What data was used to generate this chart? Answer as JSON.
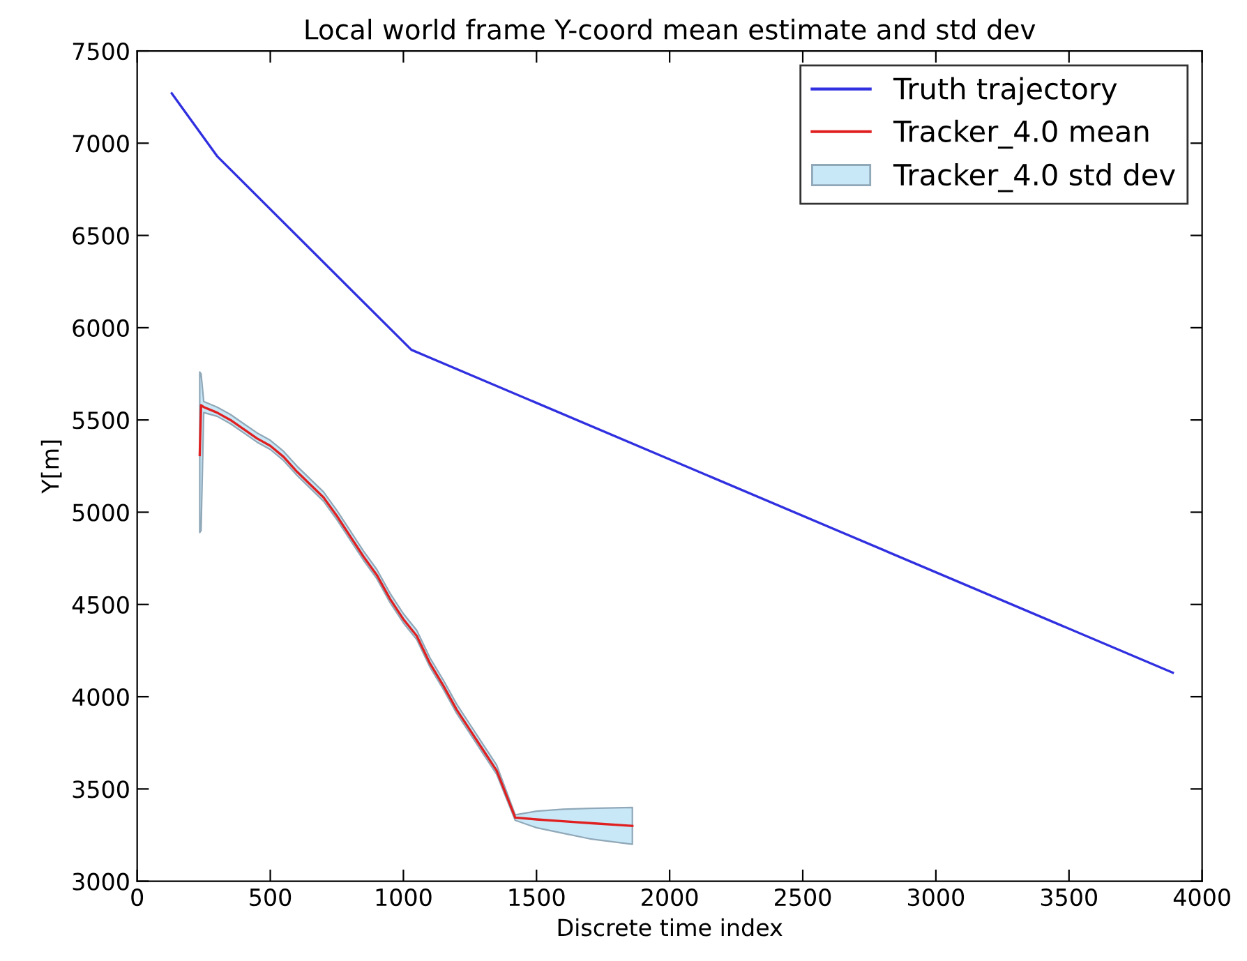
{
  "chart_data": {
    "type": "line",
    "title": "Local world frame Y-coord mean estimate and std dev",
    "xlabel": "Discrete time index",
    "ylabel": "Y[m]",
    "xlim": [
      0,
      4000
    ],
    "xticks": [
      0,
      500,
      1000,
      1500,
      2000,
      2500,
      3000,
      3500,
      4000
    ],
    "ylim": [
      3000,
      7500
    ],
    "yticks": [
      3000,
      3500,
      4000,
      4500,
      5000,
      5500,
      6000,
      6500,
      7000,
      7500
    ],
    "grid": false,
    "legend": "top right",
    "marker": "none",
    "line_style": "solid",
    "series": [
      {
        "name": "Truth trajectory",
        "color": "#3030e0",
        "x": [
          130,
          300,
          1030,
          3890
        ],
        "values": [
          7270,
          6930,
          5880,
          4130
        ]
      },
      {
        "name": "Tracker_4.0 mean",
        "color": "#e02020",
        "x": [
          235,
          240,
          250,
          300,
          350,
          400,
          450,
          500,
          550,
          600,
          650,
          700,
          750,
          800,
          850,
          900,
          950,
          1000,
          1050,
          1100,
          1150,
          1200,
          1250,
          1300,
          1350,
          1420,
          1500,
          1600,
          1700,
          1860
        ],
        "values": [
          5310,
          5580,
          5570,
          5540,
          5500,
          5450,
          5400,
          5360,
          5300,
          5220,
          5150,
          5080,
          4980,
          4870,
          4760,
          4660,
          4530,
          4420,
          4330,
          4180,
          4060,
          3930,
          3820,
          3710,
          3600,
          3345,
          3335,
          3325,
          3315,
          3300
        ],
        "lower": [
          4890,
          4900,
          5540,
          5520,
          5480,
          5430,
          5380,
          5340,
          5280,
          5200,
          5130,
          5060,
          4960,
          4850,
          4740,
          4640,
          4510,
          4400,
          4310,
          4160,
          4040,
          3910,
          3800,
          3690,
          3580,
          3330,
          3290,
          3260,
          3230,
          3200
        ],
        "upper": [
          5760,
          5750,
          5600,
          5570,
          5530,
          5480,
          5430,
          5390,
          5330,
          5250,
          5180,
          5110,
          5010,
          4900,
          4790,
          4690,
          4560,
          4450,
          4360,
          4210,
          4090,
          3960,
          3850,
          3740,
          3630,
          3360,
          3380,
          3390,
          3395,
          3400
        ]
      },
      {
        "name": "Tracker_4.0 std dev",
        "type": "area",
        "color": "#c8e8f8"
      }
    ]
  }
}
